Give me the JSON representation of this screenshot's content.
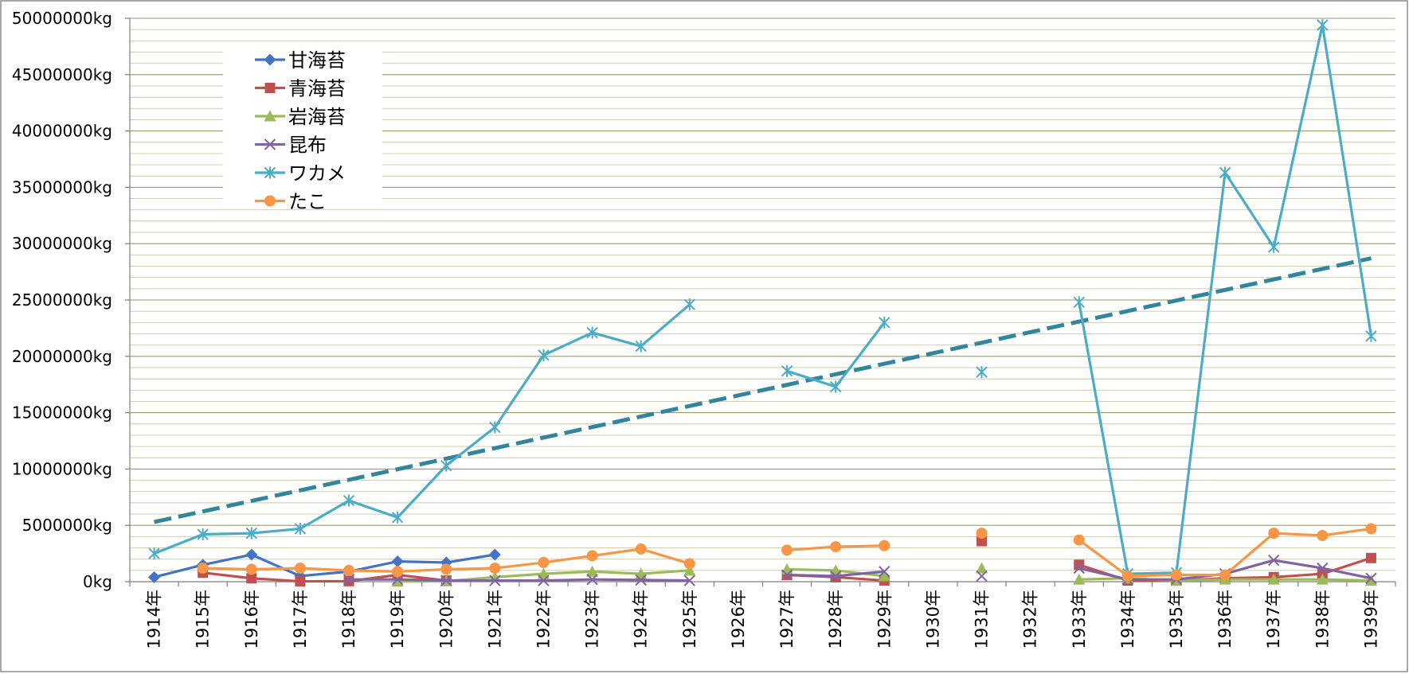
{
  "chart_data": {
    "type": "line",
    "title": "",
    "xlabel": "",
    "ylabel": "",
    "ylim": [
      0,
      50000000
    ],
    "y_ticks": [
      {
        "value": 0,
        "label": "0kg"
      },
      {
        "value": 5000000,
        "label": "5000000kg"
      },
      {
        "value": 10000000,
        "label": "10000000kg"
      },
      {
        "value": 15000000,
        "label": "15000000kg"
      },
      {
        "value": 20000000,
        "label": "20000000kg"
      },
      {
        "value": 25000000,
        "label": "25000000kg"
      },
      {
        "value": 30000000,
        "label": "30000000kg"
      },
      {
        "value": 35000000,
        "label": "35000000kg"
      },
      {
        "value": 40000000,
        "label": "40000000kg"
      },
      {
        "value": 45000000,
        "label": "45000000kg"
      },
      {
        "value": 50000000,
        "label": "50000000kg"
      }
    ],
    "grid": true,
    "minor_grid_step": 1000000,
    "legend_position": "top-left",
    "categories": [
      "1914年",
      "1915年",
      "1916年",
      "1917年",
      "1918年",
      "1919年",
      "1920年",
      "1921年",
      "1922年",
      "1923年",
      "1924年",
      "1925年",
      "1926年",
      "1927年",
      "1928年",
      "1929年",
      "1930年",
      "1931年",
      "1932年",
      "1933年",
      "1934年",
      "1935年",
      "1936年",
      "1937年",
      "1938年",
      "1939年"
    ],
    "series": [
      {
        "name": "甘海苔",
        "color": "#4472C4",
        "marker": "diamond",
        "values": [
          400000,
          1500000,
          2400000,
          500000,
          900000,
          1800000,
          1700000,
          2400000,
          null,
          null,
          null,
          null,
          null,
          null,
          null,
          null,
          null,
          null,
          null,
          null,
          null,
          null,
          null,
          null,
          null,
          null
        ]
      },
      {
        "name": "青海苔",
        "color": "#C0504D",
        "marker": "square",
        "values": [
          null,
          800000,
          300000,
          30000,
          50000,
          600000,
          100000,
          null,
          null,
          null,
          null,
          null,
          null,
          600000,
          400000,
          100000,
          null,
          3600000,
          null,
          1500000,
          100000,
          100000,
          300000,
          400000,
          700000,
          2100000
        ]
      },
      {
        "name": "岩海苔",
        "color": "#9BBB59",
        "marker": "triangle",
        "values": [
          null,
          null,
          null,
          null,
          null,
          20000,
          50000,
          400000,
          700000,
          900000,
          700000,
          1000000,
          null,
          1100000,
          1000000,
          500000,
          null,
          1200000,
          null,
          200000,
          300000,
          100000,
          200000,
          200000,
          200000,
          100000
        ]
      },
      {
        "name": "昆布",
        "color": "#8064A2",
        "marker": "x",
        "values": [
          null,
          null,
          null,
          null,
          200000,
          200000,
          100000,
          100000,
          100000,
          200000,
          150000,
          100000,
          null,
          600000,
          500000,
          900000,
          null,
          500000,
          null,
          1200000,
          200000,
          200000,
          700000,
          1900000,
          1200000,
          300000
        ]
      },
      {
        "name": "ワカメ",
        "color": "#4BACC6",
        "marker": "star",
        "values": [
          2500000,
          4200000,
          4300000,
          4700000,
          7200000,
          5700000,
          10300000,
          13700000,
          20100000,
          22100000,
          20900000,
          24600000,
          null,
          18700000,
          17300000,
          23000000,
          null,
          18600000,
          null,
          24800000,
          700000,
          800000,
          36300000,
          29700000,
          49400000,
          21800000
        ]
      },
      {
        "name": "たこ",
        "color": "#F79646",
        "marker": "circle",
        "values": [
          null,
          1200000,
          1100000,
          1200000,
          1000000,
          900000,
          1100000,
          1200000,
          1700000,
          2300000,
          2900000,
          1600000,
          null,
          2800000,
          3100000,
          3200000,
          null,
          4300000,
          null,
          3700000,
          500000,
          600000,
          600000,
          4300000,
          4100000,
          4700000
        ]
      }
    ],
    "trendline": {
      "series": "ワカメ",
      "type": "linear",
      "color": "#31859C",
      "style": "dashed",
      "start_value": 5300000,
      "end_value": 28700000
    }
  }
}
